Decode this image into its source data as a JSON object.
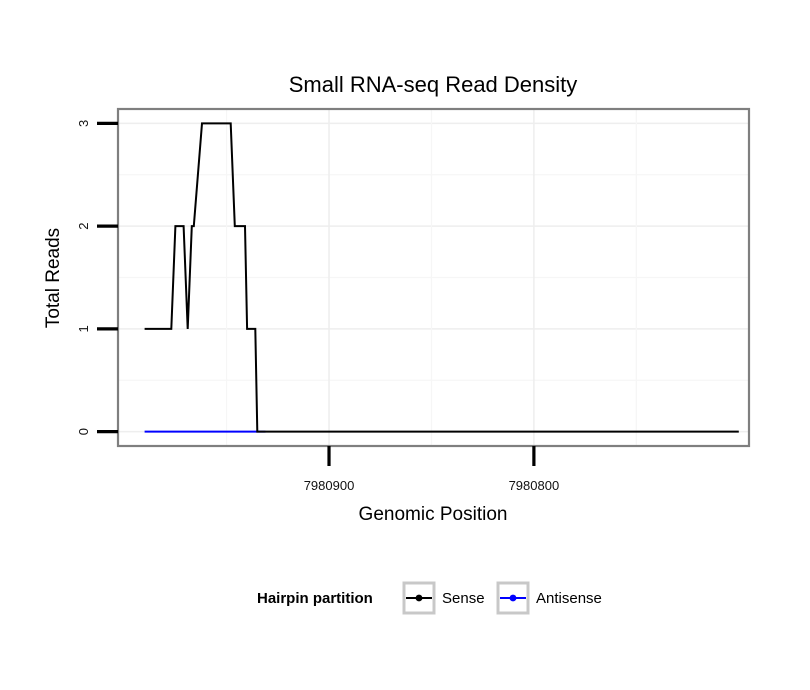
{
  "chart_data": {
    "type": "line",
    "title": "Small RNA-seq Read Density",
    "xlabel": "Genomic Position",
    "ylabel": "Total Reads",
    "x_reversed": true,
    "xlim": [
      7981003,
      7980695
    ],
    "ylim": [
      -0.14,
      3.14
    ],
    "x_ticks": [
      7980900,
      7980800
    ],
    "x_tick_labels": [
      "7980900",
      "7980800"
    ],
    "y_ticks": [
      0,
      1,
      2,
      3
    ],
    "y_tick_labels": [
      "0",
      "1",
      "2",
      "3"
    ],
    "x_minor_gridlines": [
      7980950,
      7980850,
      7980750
    ],
    "y_minor_gridlines": [
      0.5,
      1.5,
      2.5
    ],
    "grid": true,
    "legend": {
      "title": "Hairpin partition",
      "position": "bottom",
      "entries": [
        "Sense",
        "Antisense"
      ]
    },
    "series": [
      {
        "name": "Sense",
        "color": "#000000",
        "x": [
          7980990,
          7980977,
          7980975,
          7980971,
          7980969,
          7980967,
          7980966,
          7980962,
          7980948,
          7980946,
          7980941,
          7980940,
          7980936,
          7980935,
          7980931,
          7980700
        ],
        "y": [
          1,
          1,
          2,
          2,
          1,
          2,
          2,
          3,
          3,
          2,
          2,
          1,
          1,
          0,
          0,
          0
        ]
      },
      {
        "name": "Antisense",
        "color": "#0000ff",
        "x": [
          7980990,
          7980931
        ],
        "y": [
          0,
          0
        ]
      }
    ]
  }
}
